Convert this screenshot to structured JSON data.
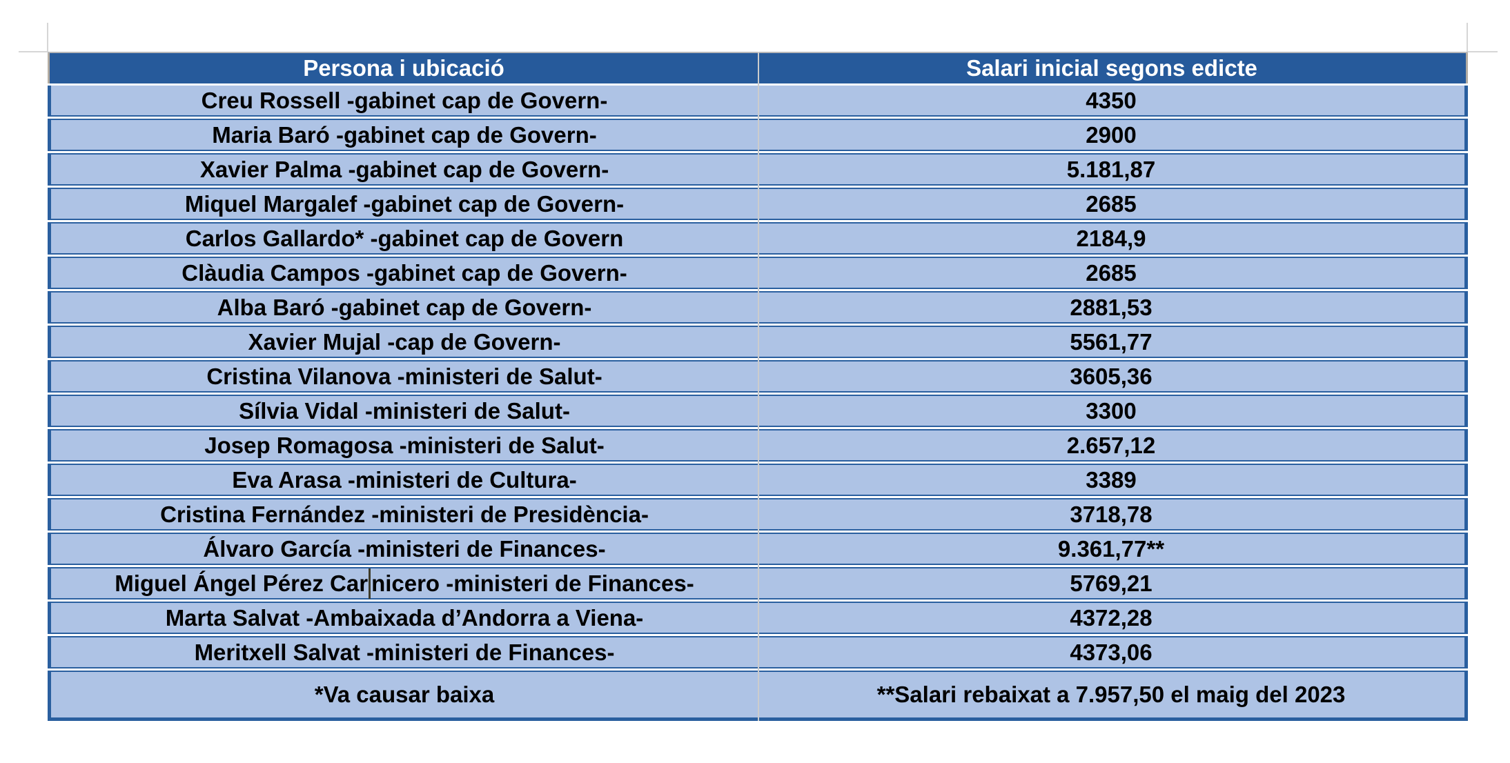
{
  "table": {
    "columns": [
      {
        "label": "Persona i ubicació"
      },
      {
        "label": "Salari inicial segons edicte"
      }
    ],
    "rows": [
      {
        "person": "Creu Rossell -gabinet cap de Govern-",
        "salary": "4350"
      },
      {
        "person": "Maria Baró -gabinet cap de Govern-",
        "salary": "2900"
      },
      {
        "person": "Xavier Palma -gabinet cap de Govern-",
        "salary": "5.181,87"
      },
      {
        "person": "Miquel Margalef -gabinet cap de Govern-",
        "salary": "2685"
      },
      {
        "person": "Carlos Gallardo* -gabinet cap de Govern",
        "salary": "2184,9"
      },
      {
        "person": "Clàudia Campos -gabinet cap de Govern-",
        "salary": "2685"
      },
      {
        "person": "Alba Baró -gabinet cap de Govern-",
        "salary": "2881,53"
      },
      {
        "person": "Xavier Mujal -cap de Govern-",
        "salary": "5561,77"
      },
      {
        "person": "Cristina Vilanova -ministeri de Salut-",
        "salary": "3605,36"
      },
      {
        "person": "Sílvia Vidal -ministeri de Salut-",
        "salary": "3300"
      },
      {
        "person": "Josep Romagosa -ministeri de Salut-",
        "salary": "2.657,12"
      },
      {
        "person": "Eva Arasa -ministeri de Cultura-",
        "salary": "3389"
      },
      {
        "person": "Cristina Fernández -ministeri de Presidència-",
        "salary": "3718,78"
      },
      {
        "person": "Álvaro García -ministeri de Finances-",
        "salary": "9.361,77**"
      },
      {
        "person": "Miguel Ángel Pérez Carnicero -ministeri de Finances-",
        "salary": "5769,21",
        "caret_pre": "Miguel Ángel Pérez Car",
        "caret_post": "nicero -ministeri de Finances-"
      },
      {
        "person": "Marta Salvat -Ambaixada d’Andorra a Viena-",
        "salary": "4372,28"
      },
      {
        "person": "Meritxell Salvat -ministeri de Finances-",
        "salary": "4373,06"
      }
    ],
    "footer": {
      "left": "*Va causar baixa",
      "right": "**Salari rebaixat a 7.957,50 el maig del 2023"
    }
  },
  "colors": {
    "header_bg": "#265a9b",
    "row_bg": "#aec3e5",
    "border_blue": "#2a5f9f",
    "header_text": "#ffffff",
    "body_text": "#000000",
    "margin_mark_gray": "#d6d6d6",
    "column_divider_gray": "#cccccc"
  }
}
